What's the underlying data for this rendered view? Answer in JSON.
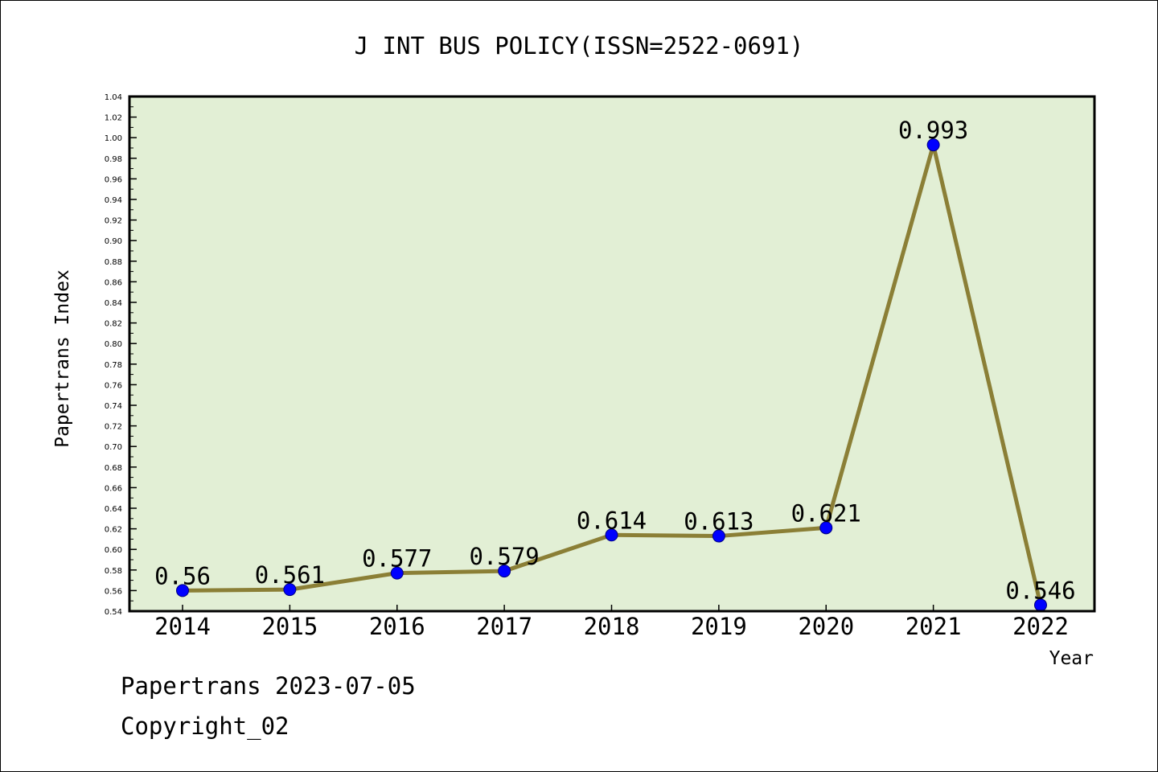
{
  "colors": {
    "plot_background": "#e2efd5",
    "line": "#8b7f36",
    "marker": "#0000ff",
    "marker_edge": "#000080",
    "axis": "#000000",
    "text": "#000000"
  },
  "footer": {
    "line1": "Papertrans 2023-07-05",
    "line2": "Copyright_02"
  },
  "chart_data": {
    "type": "line",
    "title": "J INT BUS POLICY(ISSN=2522-0691)",
    "xlabel": "Year",
    "ylabel": "Papertrans Index",
    "categories": [
      "2014",
      "2015",
      "2016",
      "2017",
      "2018",
      "2019",
      "2020",
      "2021",
      "2022"
    ],
    "series": [
      {
        "values": [
          0.56,
          0.561,
          0.577,
          0.579,
          0.614,
          0.613,
          0.621,
          0.993,
          0.546
        ],
        "labels": [
          "0.56",
          "0.561",
          "0.577",
          "0.579",
          "0.614",
          "0.613",
          "0.621",
          "0.993",
          "0.546"
        ]
      }
    ],
    "ylim": [
      0.54,
      1.04
    ],
    "ytick_step": 0.02,
    "yticks": [
      "0.54",
      "0.56",
      "0.58",
      "0.60",
      "0.62",
      "0.64",
      "0.66",
      "0.68",
      "0.70",
      "0.72",
      "0.74",
      "0.76",
      "0.78",
      "0.80",
      "0.82",
      "0.84",
      "0.86",
      "0.88",
      "0.90",
      "0.92",
      "0.94",
      "0.96",
      "0.98",
      "1.00",
      "1.02",
      "1.04"
    ],
    "grid": false,
    "legend": "none",
    "markers": true,
    "data_labels": true
  }
}
